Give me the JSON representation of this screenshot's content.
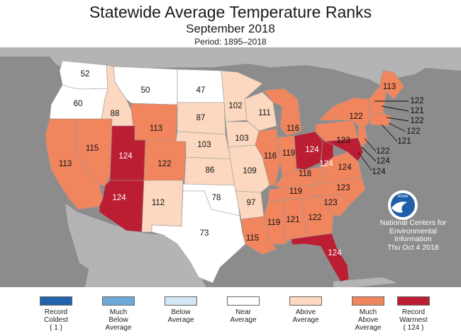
{
  "title": "Statewide Average Temperature Ranks",
  "subtitle": "September 2018",
  "period": "Period: 1895–2018",
  "colors": {
    "ocean": "#8c8c8c",
    "land_other": "#b4b4b4",
    "record_coldest": "#2166ac",
    "much_below": "#6ea8d6",
    "below": "#d3e6f3",
    "near": "#ffffff",
    "above": "#fbd8bf",
    "much_above": "#f0855e",
    "record_warmest": "#bb1e32"
  },
  "logo_text": "NOAA",
  "credit": {
    "line1": "National Centers for",
    "line2": "Environmental",
    "line3": "Information",
    "line4": "Thu Oct  4 2018"
  },
  "states": {
    "WA": "52",
    "OR": "60",
    "CA": "113",
    "NV": "115",
    "ID": "88",
    "MT": "50",
    "WY": "113",
    "UT": "124",
    "AZ": "124",
    "CO": "122",
    "NM": "112",
    "ND": "47",
    "SD": "87",
    "NE": "103",
    "KS": "86",
    "OK": "78",
    "TX": "73",
    "MN": "102",
    "IA": "103",
    "MO": "109",
    "AR": "97",
    "LA": "115",
    "WI": "111",
    "IL": "116",
    "MI": "116",
    "IN": "119",
    "OH": "124",
    "KY": "118",
    "TN": "119",
    "MS": "119",
    "AL": "121",
    "GA": "122",
    "FL": "124",
    "SC": "123",
    "NC": "123",
    "VA": "124",
    "WV": "124",
    "PA": "123",
    "NY": "122",
    "ME": "113",
    "VT": "122",
    "NH": "121",
    "MA": "122",
    "RI": "122",
    "CT": "121",
    "NJ": "122",
    "DE": "124",
    "MD": "124"
  },
  "legend": [
    {
      "label": "Record\nColdest\n( 1 )",
      "color": "#2166ac"
    },
    {
      "label": "Much\nBelow\nAverage",
      "color": "#6ea8d6"
    },
    {
      "label": "Below\nAverage",
      "color": "#d3e6f3"
    },
    {
      "label": "Near\nAverage",
      "color": "#ffffff"
    },
    {
      "label": "Above\nAverage",
      "color": "#fbd8bf"
    },
    {
      "label": "Much\nAbove\nAverage",
      "color": "#f0855e"
    },
    {
      "label": "Record\nWarmest\n( 124 )",
      "color": "#bb1e32"
    }
  ]
}
